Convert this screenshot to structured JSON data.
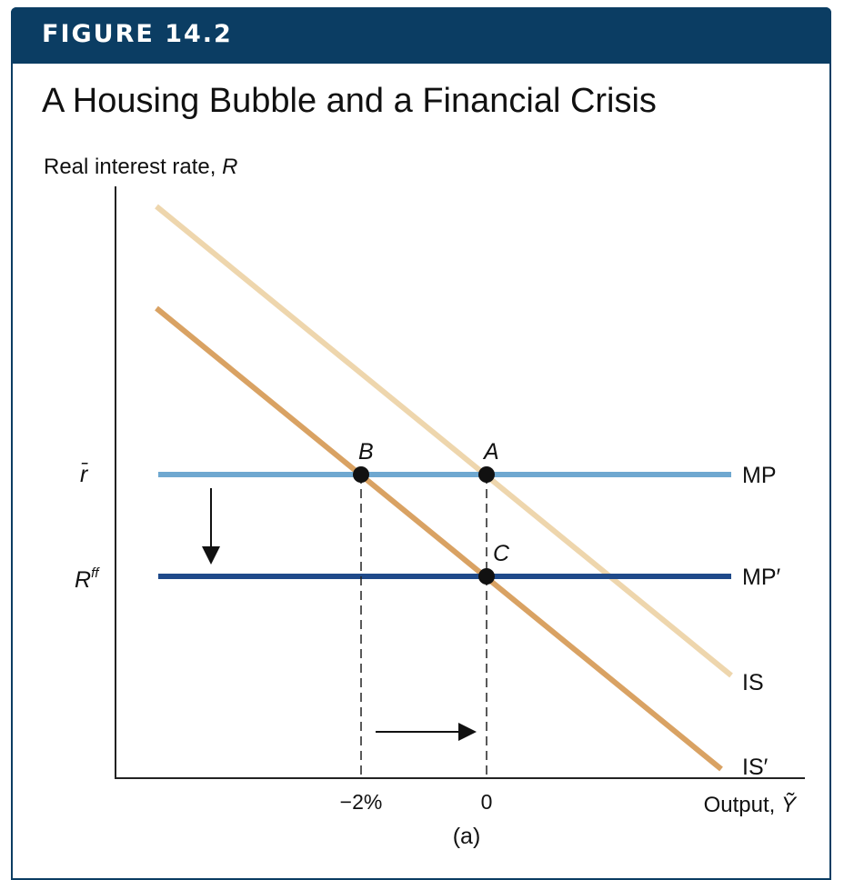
{
  "header": {
    "figure_label": "FIGURE 14.2",
    "title": "A Housing Bubble and a Financial Crisis"
  },
  "axes": {
    "y_label": "Real interest rate,",
    "y_symbol": "R",
    "x_label": "Output,",
    "x_symbol": "Ỹ",
    "y_ticks": {
      "r_bar": "r̄",
      "r_ff_base": "R",
      "r_ff_sup": "ff"
    },
    "x_ticks": {
      "minus2": "−2%",
      "zero": "0"
    },
    "panel_caption": "(a)"
  },
  "curves": {
    "mp": "MP",
    "mp_prime": "MP′",
    "is": "IS",
    "is_prime": "IS′"
  },
  "points": {
    "a": "A",
    "b": "B",
    "c": "C"
  },
  "colors": {
    "banner": "#0b3d63",
    "mp": "#6fa8d0",
    "mp_prime": "#1f4a8a",
    "is": "#eed6ad",
    "is_prime": "#d9a263"
  }
}
